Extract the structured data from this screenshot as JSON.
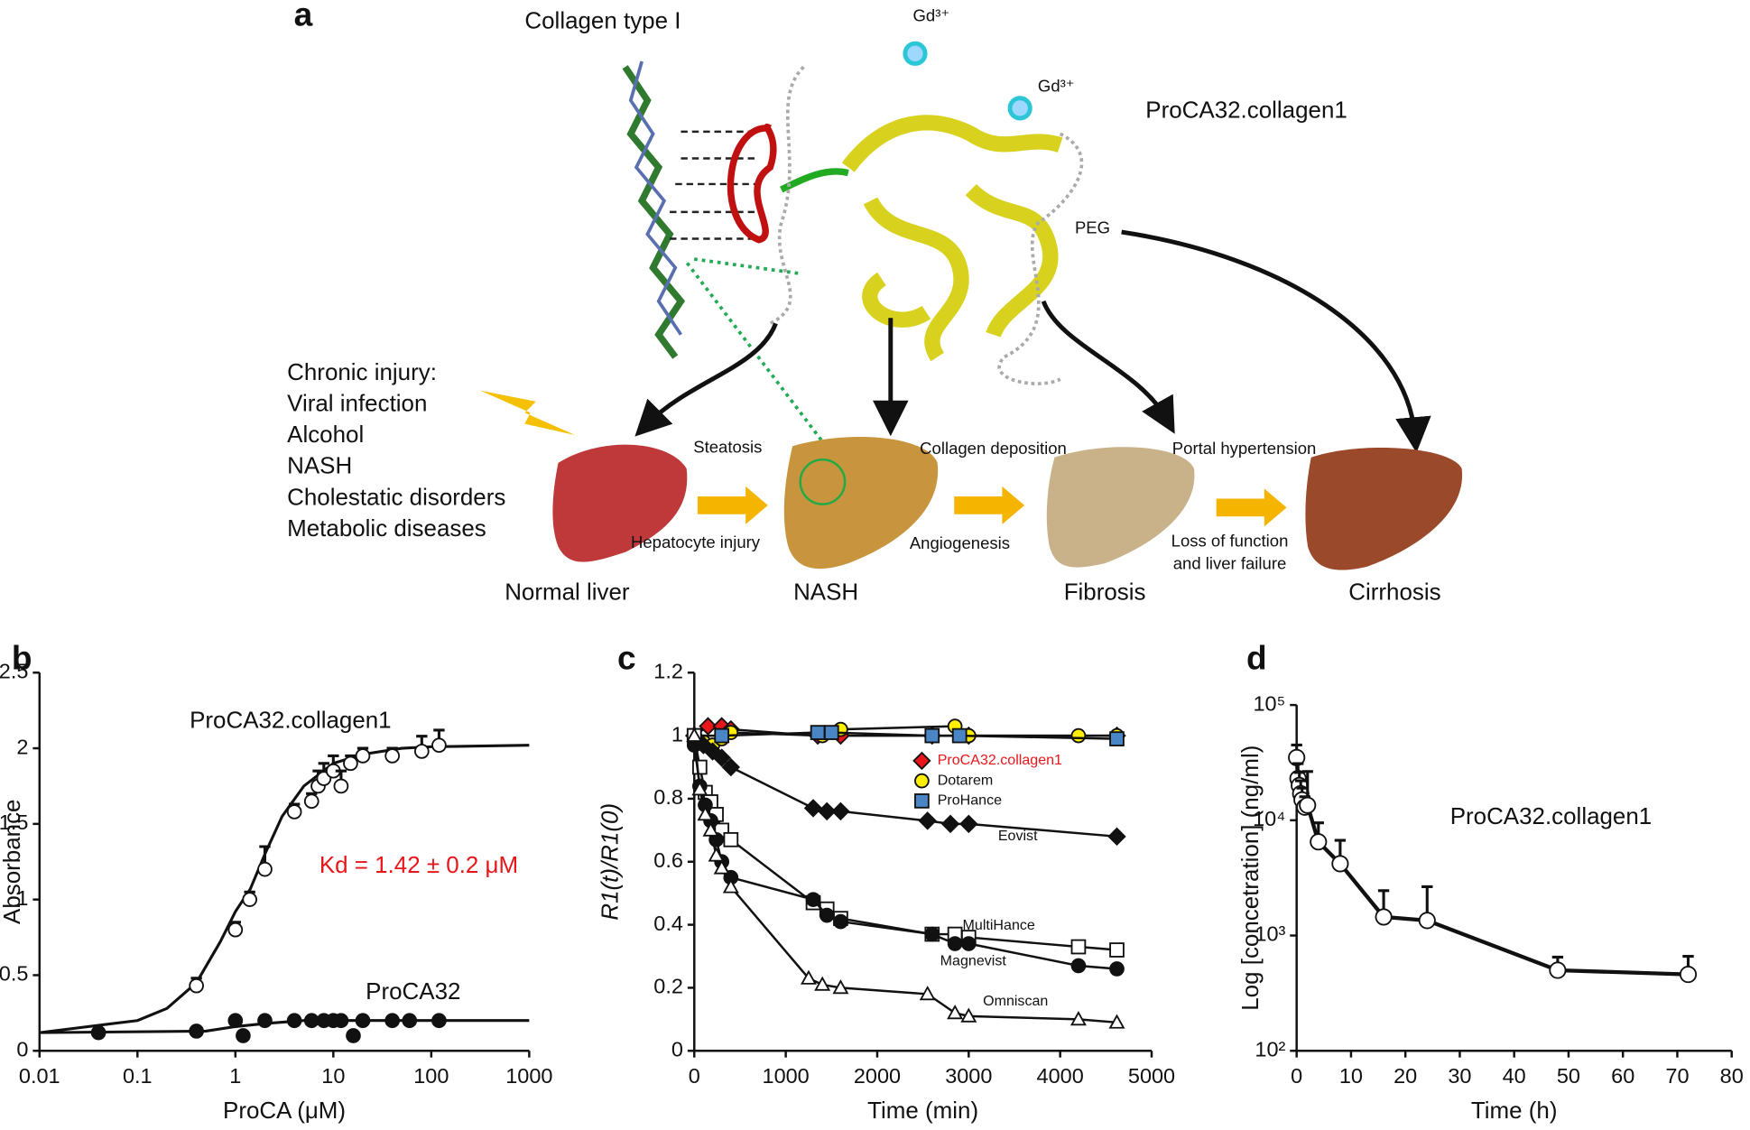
{
  "diagram": {
    "label": "a",
    "collagen": "Collagen type I",
    "gd": [
      "Gd³⁺",
      "Gd³⁺"
    ],
    "protein": "ProCA32.collagen1",
    "peg": "PEG",
    "injury_title": "Chronic injury:",
    "injuries": [
      "Viral infection",
      "Alcohol",
      "NASH",
      "Cholestatic disorders",
      "Metabolic diseases"
    ],
    "stages": [
      "Normal liver",
      "NASH",
      "Fibrosis",
      "Cirrhosis"
    ],
    "transitions": [
      [
        "Steatosis",
        "Hepatocyte injury"
      ],
      [
        "Collagen deposition",
        "Angiogenesis"
      ],
      [
        "Portal hypertension",
        "Loss of function",
        "and liver failure"
      ]
    ]
  },
  "chart_data": [
    {
      "type": "scatter",
      "panel": "b",
      "xlabel": "ProCA (μM)",
      "ylabel": "Absorbance",
      "annotation": "Kd = 1.42 ± 0.2 μM",
      "log_x": true,
      "xlim": [
        0.01,
        1000
      ],
      "xticks": [
        0.01,
        0.1,
        1,
        10,
        100,
        1000
      ],
      "ylim": [
        0,
        2.5
      ],
      "yticks": [
        0,
        0.5,
        1,
        1.5,
        2,
        2.5
      ],
      "series": [
        {
          "name": "ProCA32.collagen1",
          "marker": "circle",
          "color": "#ffffff",
          "x": [
            0.4,
            1,
            1.4,
            2,
            4,
            6,
            7,
            8,
            10,
            12,
            15,
            20,
            40,
            80,
            120
          ],
          "values": [
            0.43,
            0.8,
            1.0,
            1.2,
            1.58,
            1.65,
            1.75,
            1.8,
            1.85,
            1.75,
            1.9,
            1.95,
            1.95,
            1.98,
            2.02
          ],
          "errors": [
            0.05,
            0.05,
            0.05,
            0.15,
            0.05,
            0.05,
            0.1,
            0.1,
            0.1,
            0.1,
            0.05,
            0.05,
            0.05,
            0.1,
            0.1
          ],
          "curve": {
            "x": [
              0.01,
              0.1,
              0.2,
              0.4,
              0.7,
              1,
              1.42,
              2,
              3,
              5,
              10,
              20,
              50,
              100,
              1000
            ],
            "values": [
              0.12,
              0.2,
              0.28,
              0.45,
              0.72,
              0.92,
              1.07,
              1.3,
              1.55,
              1.75,
              1.9,
              1.96,
              2.0,
              2.01,
              2.02
            ]
          }
        },
        {
          "name": "ProCA32",
          "marker": "circle",
          "color": "#111111",
          "x": [
            0.04,
            0.4,
            1,
            1.2,
            2,
            4,
            6,
            8,
            10,
            12,
            16,
            20,
            40,
            60,
            120
          ],
          "values": [
            0.12,
            0.13,
            0.2,
            0.1,
            0.2,
            0.2,
            0.2,
            0.2,
            0.2,
            0.2,
            0.1,
            0.2,
            0.2,
            0.2,
            0.2
          ],
          "curve": {
            "x": [
              0.01,
              0.5,
              1,
              2,
              5,
              1000
            ],
            "values": [
              0.12,
              0.13,
              0.16,
              0.18,
              0.2,
              0.2
            ]
          }
        }
      ]
    },
    {
      "type": "line",
      "panel": "c",
      "xlabel": "Time (min)",
      "ylabel": "R1(t)/R1(0)",
      "xlim": [
        0,
        5000
      ],
      "xticks": [
        0,
        1000,
        2000,
        3000,
        4000,
        5000
      ],
      "ylim": [
        0,
        1.2
      ],
      "yticks": [
        0,
        0.2,
        0.4,
        0.6,
        0.8,
        1,
        1.2
      ],
      "series": [
        {
          "name": "ProCA32.collagen1",
          "marker": "diamond",
          "color": "#e8161b",
          "x": [
            0,
            150,
            300,
            400,
            1350,
            1600,
            2600,
            3000,
            4620
          ],
          "values": [
            1,
            1.03,
            1.03,
            1.02,
            1.0,
            1.0,
            1.0,
            1.0,
            1.0
          ]
        },
        {
          "name": "Dotarem",
          "marker": "circle",
          "color": "#ffee00",
          "x": [
            0,
            100,
            200,
            300,
            400,
            1400,
            1600,
            2850,
            3000,
            4200,
            4620
          ],
          "values": [
            1,
            0.98,
            0.97,
            0.99,
            1.01,
            1.0,
            1.02,
            1.03,
            1.0,
            1.0,
            1.0
          ]
        },
        {
          "name": "ProHance",
          "marker": "square",
          "color": "#4a86c5",
          "x": [
            0,
            300,
            1350,
            1500,
            2600,
            2900,
            4620
          ],
          "values": [
            1,
            1.0,
            1.01,
            1.01,
            1.0,
            1.0,
            0.99
          ]
        },
        {
          "name": "Eovist",
          "marker": "diamond",
          "color": "#111111",
          "x": [
            0,
            100,
            200,
            300,
            400,
            1300,
            1450,
            1600,
            2550,
            2800,
            3000,
            4620
          ],
          "values": [
            1,
            0.97,
            0.95,
            0.93,
            0.9,
            0.77,
            0.76,
            0.76,
            0.73,
            0.72,
            0.72,
            0.68
          ]
        },
        {
          "name": "MultiHance",
          "marker": "square",
          "color": "#ffffff",
          "x": [
            0,
            60,
            120,
            180,
            240,
            300,
            400,
            1300,
            1450,
            1600,
            2600,
            2850,
            3000,
            4200,
            4620
          ],
          "values": [
            1,
            0.9,
            0.82,
            0.79,
            0.75,
            0.7,
            0.67,
            0.47,
            0.45,
            0.42,
            0.37,
            0.37,
            0.36,
            0.33,
            0.32
          ]
        },
        {
          "name": "Magnevist",
          "marker": "circle",
          "color": "#111111",
          "x": [
            0,
            60,
            120,
            180,
            240,
            300,
            400,
            1300,
            1450,
            1600,
            2600,
            2850,
            3000,
            4200,
            4620
          ],
          "values": [
            0.97,
            0.84,
            0.78,
            0.73,
            0.67,
            0.6,
            0.55,
            0.48,
            0.43,
            0.41,
            0.37,
            0.34,
            0.34,
            0.27,
            0.26
          ]
        },
        {
          "name": "Omniscan",
          "marker": "triangle",
          "color": "#ffffff",
          "x": [
            0,
            60,
            120,
            180,
            240,
            300,
            400,
            1250,
            1400,
            1600,
            2550,
            2850,
            3000,
            4200,
            4620
          ],
          "values": [
            1,
            0.83,
            0.75,
            0.7,
            0.62,
            0.58,
            0.52,
            0.23,
            0.21,
            0.2,
            0.18,
            0.12,
            0.11,
            0.1,
            0.09
          ]
        }
      ]
    },
    {
      "type": "line",
      "panel": "d",
      "xlabel": "Time (h)",
      "ylabel": "Log [concetration] (ng/ml)",
      "log_y": true,
      "xlim": [
        0,
        80
      ],
      "xticks": [
        0,
        10,
        20,
        30,
        40,
        50,
        60,
        70,
        80
      ],
      "ylim": [
        100,
        100000
      ],
      "yticks": [
        {
          "value": 100,
          "label": "10²"
        },
        {
          "value": 1000,
          "label": "10³"
        },
        {
          "value": 10000,
          "label": "10⁴"
        },
        {
          "value": 100000,
          "label": "10⁵"
        }
      ],
      "series": [
        {
          "name": "ProCA32.collagen1",
          "marker": "circle",
          "color": "#ffffff",
          "x": [
            0,
            0.25,
            0.5,
            0.75,
            1,
            1.5,
            2,
            4,
            8,
            16,
            24,
            48,
            72
          ],
          "values": [
            35000,
            23000,
            20000,
            17000,
            15000,
            13000,
            13500,
            6500,
            4200,
            1450,
            1350,
            500,
            460
          ],
          "errors": [
            10000,
            8000,
            6000,
            5000,
            4000,
            3000,
            13000,
            3000,
            2500,
            1000,
            1300,
            150,
            200
          ]
        }
      ]
    }
  ]
}
